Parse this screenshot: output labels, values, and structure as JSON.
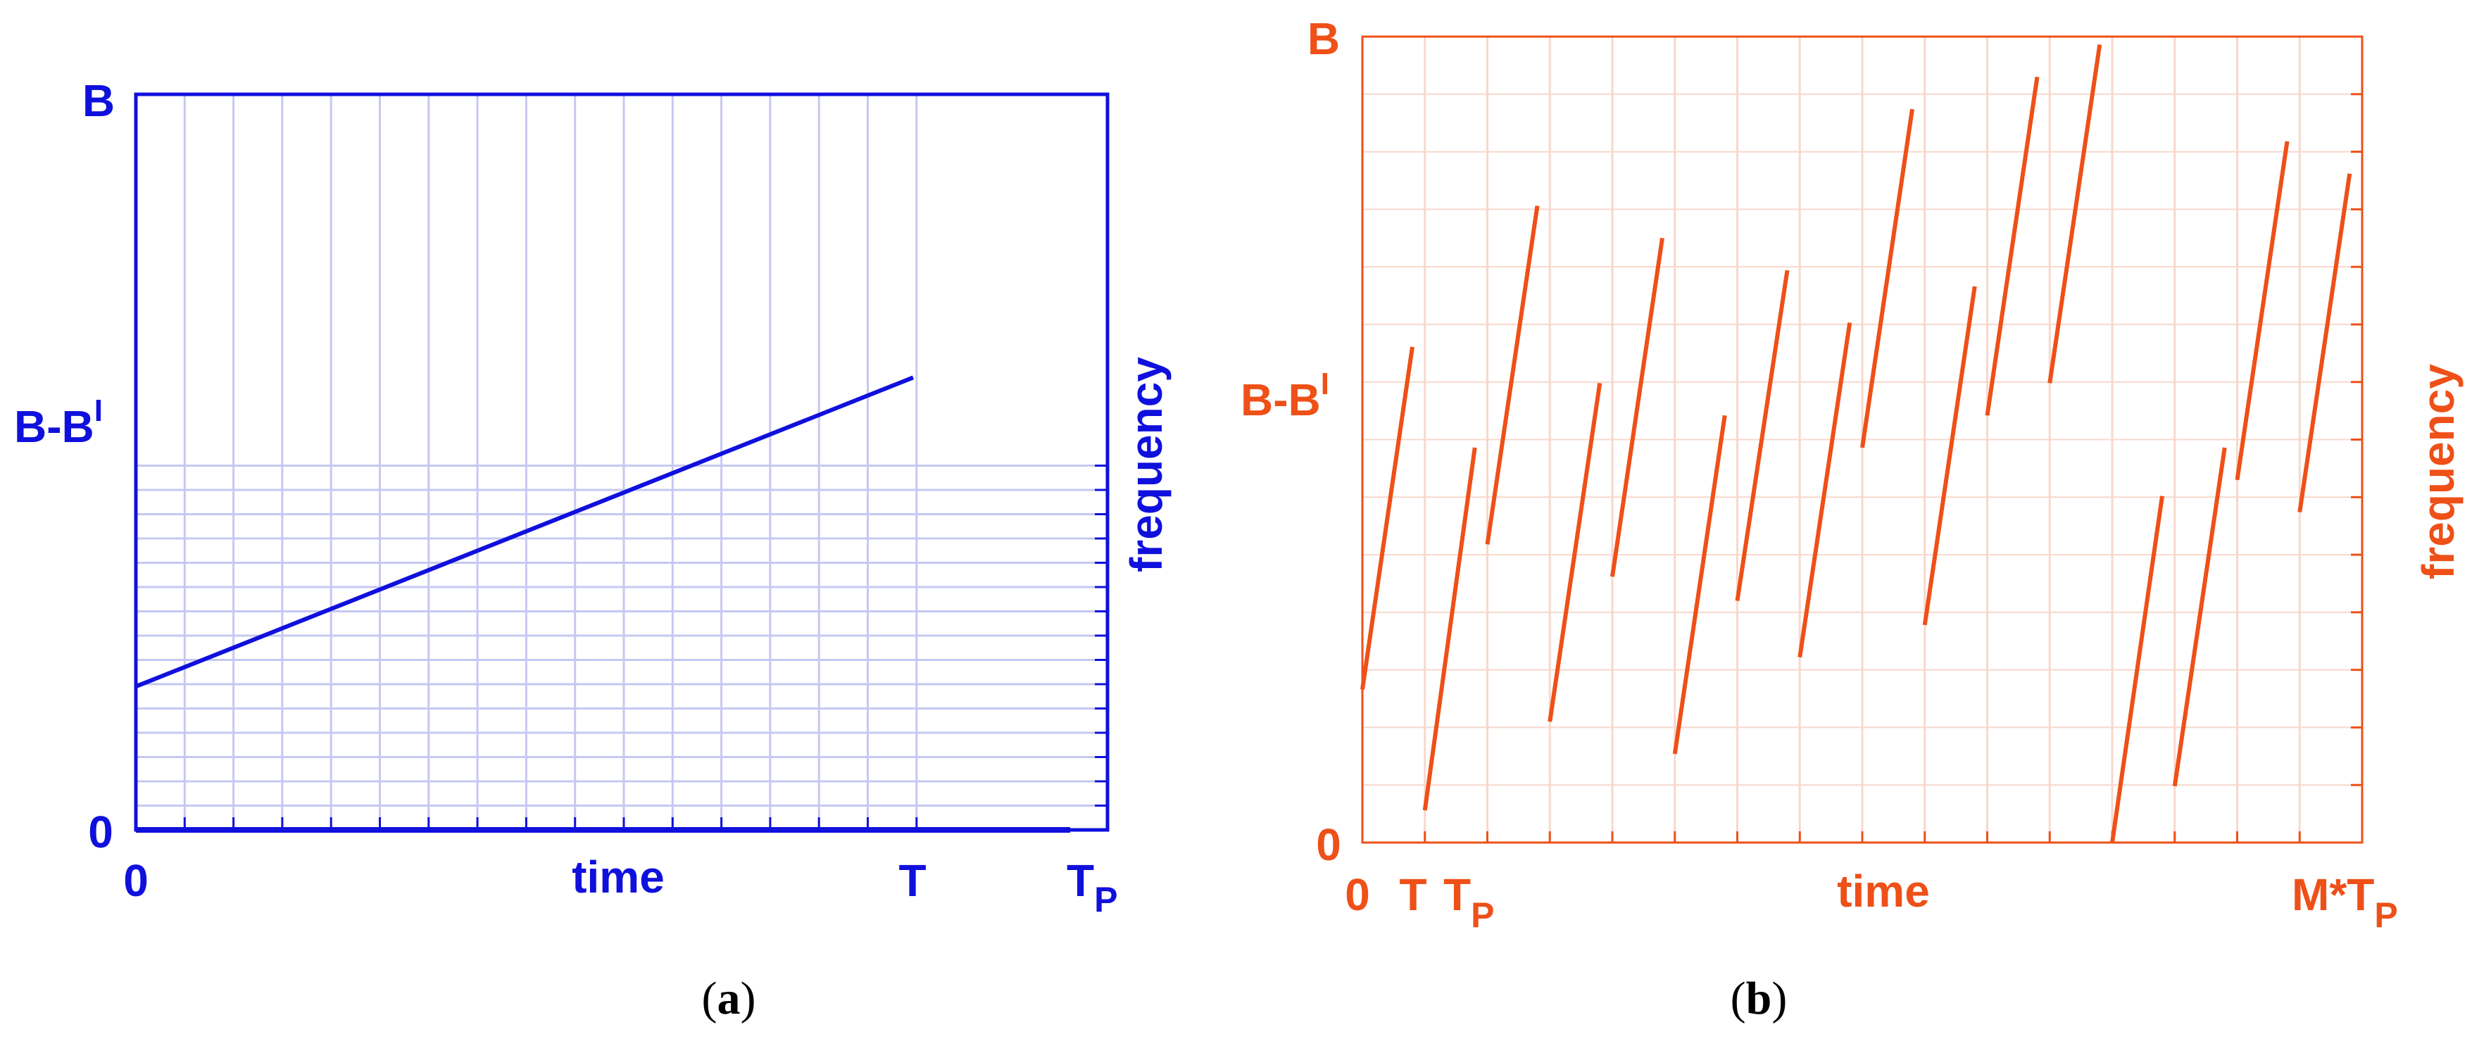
{
  "colors": {
    "left_line": "#1010dd",
    "left_grid": "#c6c8f2",
    "right_line": "#ee5018",
    "right_grid": "#f8d8cc"
  },
  "left": {
    "caption_open": "(",
    "caption_letter": "a",
    "caption_close": ")",
    "y_top": "B",
    "y_mid_base": "B-B",
    "y_mid_sup": "I",
    "y_zero": "0",
    "x_zero": "0",
    "x_label": "time",
    "x_T": "T",
    "x_Tp_base": "T",
    "x_Tp_sub": "P",
    "y_axis_label": "frequency"
  },
  "right": {
    "caption_open": "(",
    "caption_letter": "b",
    "caption_close": ")",
    "y_top": "B",
    "y_mid_base": "B-B",
    "y_mid_sup": "I",
    "y_zero": "0",
    "x_zero": "0",
    "x_T": "T",
    "x_Tp_base": "T",
    "x_Tp_sub": "P",
    "x_label": "time",
    "x_end_base": "M*T",
    "x_end_sub": "P",
    "y_axis_label": "frequency"
  },
  "chart_data": [
    {
      "type": "line",
      "xlabel": "time",
      "ylabel": "frequency",
      "x_ticks": [
        "0",
        "T",
        "T_P"
      ],
      "y_ticks": [
        "0",
        "B-B^I",
        "B"
      ],
      "xlim": [
        0,
        1.25
      ],
      "ylim": [
        0,
        1
      ],
      "series": [
        {
          "x": [
            0,
            1
          ],
          "y": [
            0.195,
            0.615
          ]
        }
      ]
    },
    {
      "type": "line",
      "xlabel": "time",
      "ylabel": "frequency",
      "x_ticks": [
        "0",
        "T",
        "T_P",
        "M*T_P"
      ],
      "y_ticks": [
        "0",
        "B-B^I",
        "B"
      ],
      "xlim": [
        0,
        16
      ],
      "ylim": [
        0,
        1
      ],
      "segments": [
        {
          "x": [
            0,
            0.8
          ],
          "y": [
            0.19,
            0.615
          ]
        },
        {
          "x": [
            1.0,
            1.8
          ],
          "y": [
            0.04,
            0.49
          ]
        },
        {
          "x": [
            2.0,
            2.8
          ],
          "y": [
            0.37,
            0.79
          ]
        },
        {
          "x": [
            3.0,
            3.8
          ],
          "y": [
            0.15,
            0.57
          ]
        },
        {
          "x": [
            4.0,
            4.8
          ],
          "y": [
            0.33,
            0.75
          ]
        },
        {
          "x": [
            5.0,
            5.8
          ],
          "y": [
            0.11,
            0.53
          ]
        },
        {
          "x": [
            6.0,
            6.8
          ],
          "y": [
            0.3,
            0.71
          ]
        },
        {
          "x": [
            7.0,
            7.8
          ],
          "y": [
            0.23,
            0.645
          ]
        },
        {
          "x": [
            8.0,
            8.8
          ],
          "y": [
            0.49,
            0.91
          ]
        },
        {
          "x": [
            9.0,
            9.8
          ],
          "y": [
            0.27,
            0.69
          ]
        },
        {
          "x": [
            10.0,
            10.8
          ],
          "y": [
            0.53,
            0.95
          ]
        },
        {
          "x": [
            11.0,
            11.8
          ],
          "y": [
            0.57,
            0.99
          ]
        },
        {
          "x": [
            12.0,
            12.8
          ],
          "y": [
            0.0,
            0.43
          ]
        },
        {
          "x": [
            13.0,
            13.8
          ],
          "y": [
            0.07,
            0.49
          ]
        },
        {
          "x": [
            14.0,
            14.8
          ],
          "y": [
            0.45,
            0.87
          ]
        },
        {
          "x": [
            15.0,
            15.8
          ],
          "y": [
            0.41,
            0.83
          ]
        }
      ]
    }
  ]
}
